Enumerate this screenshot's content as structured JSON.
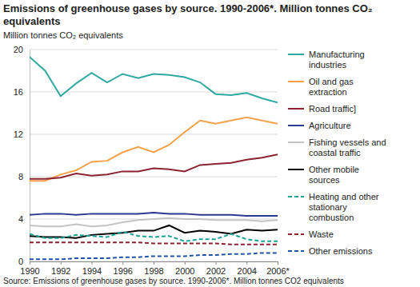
{
  "chart_data": {
    "type": "line",
    "title": "Emissions of greenhouse gases by source. 1990-2006*. Million tonnes CO₂ equivalents",
    "y_label": "Million tonnes CO₂ equivalents",
    "source": "Source: Emissions of greenhouse gases by source. 1990-2006*. Million tonnes CO2 equivalents",
    "x": [
      1990,
      1991,
      1992,
      1993,
      1994,
      1995,
      1996,
      1997,
      1998,
      1999,
      2000,
      2001,
      2002,
      2003,
      2004,
      2005,
      2006
    ],
    "xlim": [
      1990,
      2006
    ],
    "xticks": [
      1990,
      1992,
      1994,
      1996,
      1998,
      2000,
      2002,
      2004,
      {
        "value": 2006,
        "label": "2006*"
      }
    ],
    "ylim": [
      0,
      20
    ],
    "yticks": [
      0,
      4,
      8,
      12,
      16,
      20
    ],
    "grid": true,
    "legend": "right",
    "series": [
      {
        "name": "Manufacturing industries",
        "color": "#2fa9a1",
        "line_style": "solid",
        "values": [
          19.3,
          18.0,
          15.6,
          16.8,
          17.8,
          16.9,
          17.7,
          17.3,
          17.7,
          17.6,
          17.4,
          16.9,
          15.8,
          15.7,
          15.9,
          15.4,
          15.0
        ]
      },
      {
        "name": "Oil and gas extraction",
        "color": "#f5a04a",
        "line_style": "solid",
        "values": [
          7.6,
          7.6,
          8.2,
          8.6,
          9.4,
          9.5,
          10.3,
          10.8,
          10.3,
          11.0,
          12.2,
          13.3,
          13.0,
          13.3,
          13.6,
          13.3,
          13.0
        ]
      },
      {
        "name": "Road traffic]",
        "color": "#8b2332",
        "line_style": "solid",
        "values": [
          7.8,
          7.8,
          7.9,
          8.3,
          8.1,
          8.2,
          8.5,
          8.5,
          8.8,
          8.7,
          8.5,
          9.1,
          9.2,
          9.3,
          9.6,
          9.8,
          10.1
        ]
      },
      {
        "name": "Agriculture",
        "color": "#2b3990",
        "line_style": "solid",
        "values": [
          4.4,
          4.5,
          4.5,
          4.4,
          4.5,
          4.5,
          4.5,
          4.5,
          4.6,
          4.5,
          4.5,
          4.4,
          4.4,
          4.4,
          4.3,
          4.3,
          4.3
        ]
      },
      {
        "name": "Fishing vessels and coastal traffic",
        "color": "#c4c4c4",
        "line_style": "solid",
        "values": [
          3.4,
          3.3,
          3.3,
          3.5,
          3.3,
          3.4,
          3.7,
          3.9,
          4.0,
          4.1,
          4.0,
          4.0,
          3.9,
          3.9,
          3.9,
          3.8,
          3.9
        ]
      },
      {
        "name": "Other mobile sources",
        "color": "#000000",
        "line_style": "solid",
        "values": [
          2.4,
          2.3,
          2.3,
          2.2,
          2.5,
          2.6,
          2.7,
          2.9,
          2.9,
          3.4,
          2.7,
          2.9,
          2.8,
          2.6,
          3.0,
          2.9,
          3.0
        ]
      },
      {
        "name": "Heating and other stationary combustion",
        "color": "#1aa39a",
        "line_style": "dashed",
        "values": [
          2.6,
          2.2,
          2.2,
          2.5,
          2.4,
          2.3,
          2.8,
          2.4,
          2.3,
          2.4,
          1.9,
          2.1,
          2.1,
          2.6,
          2.1,
          1.9,
          1.9
        ]
      },
      {
        "name": "Waste",
        "color": "#8b2332",
        "line_style": "dashed",
        "values": [
          1.8,
          1.8,
          1.8,
          1.8,
          1.8,
          1.8,
          1.8,
          1.8,
          1.7,
          1.7,
          1.7,
          1.7,
          1.7,
          1.6,
          1.6,
          1.6,
          1.6
        ]
      },
      {
        "name": "Other emissions",
        "color": "#2255aa",
        "line_style": "dashed",
        "values": [
          0.2,
          0.2,
          0.2,
          0.3,
          0.3,
          0.3,
          0.4,
          0.4,
          0.5,
          0.5,
          0.5,
          0.6,
          0.6,
          0.7,
          0.7,
          0.8,
          0.8
        ]
      }
    ]
  }
}
